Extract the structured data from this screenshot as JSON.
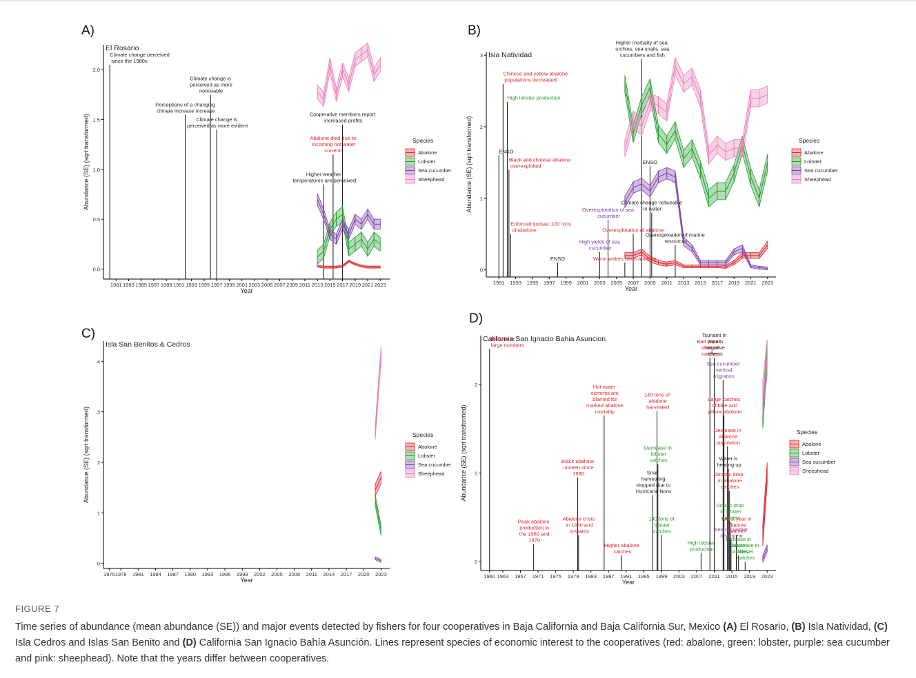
{
  "figure_label": "FIGURE 7",
  "caption": [
    "Time series of abundance (mean abundance (SE)) and major events detected by fishers for four cooperatives in Baja California and Baja California Sur, Mexico ",
    "(A)",
    " El Rosario, ",
    "(B)",
    " Isla Natividad, ",
    "(C)",
    " Isla Cedros and Islas San Benito and ",
    "(D)",
    " California San Ignacio Bahía Asunción. Lines represent species of economic interest to the cooperatives (red: abalone, green: lobster, purple: sea cucumber and pink: sheephead). Note that the years differ between cooperatives."
  ],
  "chart_data": [
    {
      "type": "line",
      "panel_label": "A)",
      "subtitle": "El Rosario",
      "x_label": "Year",
      "y_label": "Abundance (SE) (sqrt transformed)",
      "legend_title": "Species",
      "xlim": [
        1979,
        2024.5
      ],
      "xticks": [
        1981,
        1983,
        1985,
        1987,
        1989,
        1991,
        1993,
        1995,
        1997,
        1999,
        2001,
        2003,
        2005,
        2007,
        2009,
        2011,
        2013,
        2015,
        2017,
        2019,
        2021,
        2023
      ],
      "ylim": [
        -0.1,
        2.25
      ],
      "yticks": [
        {
          "value": 0,
          "label": "0.0"
        },
        {
          "value": 0.5,
          "label": "0.5"
        },
        {
          "value": 1,
          "label": "1.0"
        },
        {
          "value": 1.5,
          "label": "1.5"
        },
        {
          "value": 2,
          "label": "2.0"
        }
      ],
      "x": [
        2013,
        2014,
        2015,
        2016,
        2017,
        2018,
        2019,
        2020,
        2021,
        2022,
        2023
      ],
      "series": [
        {
          "name": "Abalone",
          "color": "#e0242a",
          "values": [
            0.03,
            0.02,
            0.02,
            0.02,
            0.03,
            0.08,
            0.05,
            0.03,
            0.02,
            0.02,
            0.02
          ],
          "errors": [
            0.01,
            0.01,
            0.01,
            0.01,
            0.01,
            0.01,
            0.01,
            0.01,
            0.01,
            0.01,
            0.01
          ]
        },
        {
          "name": "Lobster",
          "color": "#1f9a2a",
          "values": [
            0.12,
            0.18,
            0.4,
            0.5,
            0.55,
            0.2,
            0.25,
            0.3,
            0.2,
            0.3,
            0.25
          ],
          "errors": [
            0.07,
            0.07,
            0.07,
            0.07,
            0.08,
            0.07,
            0.07,
            0.07,
            0.07,
            0.07,
            0.07
          ]
        },
        {
          "name": "Sea cucumber",
          "color": "#7a3fa6",
          "values": [
            0.7,
            0.55,
            0.35,
            0.3,
            0.45,
            0.35,
            0.5,
            0.45,
            0.55,
            0.45,
            0.45
          ],
          "errors": [
            0.06,
            0.05,
            0.05,
            0.05,
            0.05,
            0.05,
            0.05,
            0.05,
            0.05,
            0.05,
            0.05
          ]
        },
        {
          "name": "Sheephead",
          "color": "#e87fb8",
          "values": [
            1.78,
            1.7,
            2.05,
            1.75,
            2.0,
            1.85,
            2.1,
            2.15,
            2.2,
            1.95,
            2.05
          ],
          "errors": [
            0.07,
            0.07,
            0.07,
            0.07,
            0.07,
            0.07,
            0.07,
            0.07,
            0.07,
            0.07,
            0.07
          ]
        }
      ],
      "annotations": [
        {
          "x": 1980,
          "y": 2.05,
          "text": "Climate change perceived since the 1980s",
          "color": "#222"
        },
        {
          "x": 1992,
          "y": 1.55,
          "text": "Perceptions of a changing climate increase increase",
          "color": "#222"
        },
        {
          "x": 1996,
          "y": 1.75,
          "text": "Climate change is perceived as more noticeable",
          "color": "#222"
        },
        {
          "x": 1997,
          "y": 1.4,
          "text": "Climate change is perceived as more evident",
          "color": "#222"
        },
        {
          "x": 2014,
          "y": 0.85,
          "text": "Higher weather temperatures are perceived",
          "color": "#222"
        },
        {
          "x": 2015.5,
          "y": 1.15,
          "text": "Abalone died due to incoming hot water currents",
          "color": "#e0242a"
        },
        {
          "x": 2017,
          "y": 1.45,
          "text": "Cooperative members report increased profits",
          "color": "#222"
        }
      ]
    },
    {
      "type": "line",
      "panel_label": "B)",
      "subtitle": "Isla Natividad",
      "x_label": "Year",
      "y_label": "Abundance (SE) (sqrt transformed)",
      "legend_title": "Species",
      "xlim": [
        1989.5,
        2024
      ],
      "xticks": [
        1991,
        1993,
        1995,
        1997,
        1999,
        2001,
        2003,
        2005,
        2007,
        2009,
        2011,
        2013,
        2015,
        2017,
        2019,
        2021,
        2023
      ],
      "ylim": [
        -0.1,
        3.05
      ],
      "yticks": [
        0,
        1,
        2,
        3
      ],
      "x": [
        2006,
        2007,
        2008,
        2009,
        2010,
        2011,
        2012,
        2013,
        2014,
        2015,
        2016,
        2017,
        2018,
        2019,
        2020,
        2021,
        2022,
        2023
      ],
      "series": [
        {
          "name": "Abalone",
          "color": "#e0242a",
          "values": [
            0.2,
            0.2,
            0.25,
            0.15,
            0.1,
            0.08,
            0.1,
            0.05,
            0.05,
            0.05,
            0.05,
            0.05,
            0.04,
            0.1,
            0.2,
            0.2,
            0.2,
            0.35
          ],
          "errors": [
            0.04,
            0.04,
            0.04,
            0.04,
            0.03,
            0.03,
            0.03,
            0.02,
            0.02,
            0.02,
            0.02,
            0.02,
            0.02,
            0.03,
            0.04,
            0.04,
            0.04,
            0.05
          ]
        },
        {
          "name": "Lobster",
          "color": "#1f9a2a",
          "values": [
            2.6,
            1.9,
            2.3,
            2.55,
            1.9,
            1.75,
            1.95,
            1.55,
            1.7,
            1.4,
            1.0,
            1.1,
            1.1,
            1.35,
            1.75,
            1.3,
            1.0,
            1.5
          ],
          "errors": [
            0.12,
            0.12,
            0.12,
            0.12,
            0.12,
            0.12,
            0.12,
            0.12,
            0.12,
            0.12,
            0.12,
            0.12,
            0.12,
            0.12,
            0.12,
            0.12,
            0.12,
            0.12
          ]
        },
        {
          "name": "Sea cucumber",
          "color": "#7a3fa6",
          "values": [
            0.95,
            1.15,
            1.2,
            1.1,
            1.3,
            1.35,
            1.3,
            0.4,
            0.3,
            0.1,
            0.1,
            0.1,
            0.1,
            0.25,
            0.3,
            0.05,
            0.03,
            0.02
          ],
          "errors": [
            0.08,
            0.08,
            0.08,
            0.08,
            0.08,
            0.08,
            0.08,
            0.06,
            0.05,
            0.03,
            0.03,
            0.03,
            0.03,
            0.04,
            0.05,
            0.02,
            0.02,
            0.02
          ]
        },
        {
          "name": "Sheephead",
          "color": "#e87fb8",
          "values": [
            1.7,
            2.1,
            2.0,
            2.35,
            2.3,
            2.2,
            2.85,
            2.6,
            2.7,
            2.4,
            1.6,
            1.75,
            1.65,
            1.7,
            1.7,
            2.4,
            2.4,
            2.45
          ],
          "errors": [
            0.12,
            0.12,
            0.12,
            0.12,
            0.12,
            0.12,
            0.12,
            0.12,
            0.12,
            0.12,
            0.12,
            0.12,
            0.12,
            0.12,
            0.12,
            0.12,
            0.12,
            0.12
          ]
        }
      ],
      "annotations": [
        {
          "x": 1991.5,
          "y": 2.6,
          "text": "Chinese and yellow abalone populations decreased",
          "color": "#e0242a"
        },
        {
          "x": 1992,
          "y": 2.35,
          "text": "High lobster production",
          "color": "#1f9a2a"
        },
        {
          "x": 1991,
          "y": 1.6,
          "text": "ENSO",
          "color": "#222"
        },
        {
          "x": 1992.2,
          "y": 1.4,
          "text": "Black and chinese abalone overexploited",
          "color": "#e0242a"
        },
        {
          "x": 1992.4,
          "y": 0.5,
          "text": "Enforced quotas: 100 tons of abalone",
          "color": "#e0242a"
        },
        {
          "x": 1998,
          "y": 0.1,
          "text": "ENSO",
          "color": "#222"
        },
        {
          "x": 2003,
          "y": 0.25,
          "text": "High yields of sea cucumber",
          "color": "#7a3fa6"
        },
        {
          "x": 2004,
          "y": 0.7,
          "text": "Overexplotation of sea cucumber",
          "color": "#7a3fa6"
        },
        {
          "x": 2006,
          "y": 0.1,
          "text": "Warm waters harm abalone",
          "color": "#e0242a"
        },
        {
          "x": 2007,
          "y": 0.5,
          "text": "Overexplotation of abalone",
          "color": "#e0242a"
        },
        {
          "x": 2008,
          "y": 2.95,
          "text": "Higher mortality of sea urchins, sea snails, sea cucumbers and fish",
          "color": "#222"
        },
        {
          "x": 2009,
          "y": 1.45,
          "text": "ENSO",
          "color": "#222"
        },
        {
          "x": 2009.2,
          "y": 0.8,
          "text": "Climate change noticeable in water",
          "color": "#222"
        },
        {
          "x": 2012,
          "y": 0.35,
          "text": "Overexplotation of marine resources",
          "color": "#222"
        }
      ]
    },
    {
      "type": "line",
      "panel_label": "C)",
      "subtitle": "Isla San Benitos & Cedros",
      "x_label": "Year",
      "y_label": "Abundance (SE) (sqrt transformed)",
      "legend_title": "Species",
      "xlim": [
        1975,
        2024.5
      ],
      "xticks": [
        1976,
        1978,
        1981,
        1984,
        1987,
        1990,
        1993,
        1996,
        1999,
        2002,
        2005,
        2008,
        2011,
        2014,
        2017,
        2020,
        2023
      ],
      "ylim": [
        -0.1,
        4.4
      ],
      "yticks": [
        0,
        1,
        2,
        3,
        4
      ],
      "x": [
        2022,
        2023
      ],
      "series": [
        {
          "name": "Abalone",
          "color": "#e0242a",
          "values": [
            1.45,
            1.7
          ],
          "errors": [
            0.12,
            0.12
          ]
        },
        {
          "name": "Lobster",
          "color": "#1f9a2a",
          "values": [
            1.25,
            0.65
          ],
          "errors": [
            0.1,
            0.1
          ]
        },
        {
          "name": "Sea cucumber",
          "color": "#7a3fa6",
          "values": [
            0.1,
            0.05
          ],
          "errors": [
            0.03,
            0.03
          ]
        },
        {
          "name": "Sheephead",
          "color": "#e87fb8",
          "values": [
            2.6,
            4.15
          ],
          "errors": [
            0.15,
            0.15
          ]
        }
      ],
      "annotations": []
    },
    {
      "type": "line",
      "panel_label": "D)",
      "subtitle": "California San Ignacio Bahia Asuncion",
      "x_label": "Year",
      "y_label": "Abundance (SE) (sqrt transformed)",
      "legend_title": "Species",
      "xlim": [
        1958,
        2025
      ],
      "xticks": [
        1960,
        1963,
        1967,
        1971,
        1975,
        1979,
        1983,
        1987,
        1991,
        1995,
        1999,
        2003,
        2007,
        2011,
        2015,
        2019,
        2023
      ],
      "ylim": [
        -0.1,
        2.55
      ],
      "yticks": [
        0,
        1,
        2
      ],
      "x": [
        2022,
        2023
      ],
      "series": [
        {
          "name": "Abalone",
          "color": "#e0242a",
          "values": [
            0.3,
            1.0
          ],
          "errors": [
            0.12,
            0.12
          ]
        },
        {
          "name": "Lobster",
          "color": "#1f9a2a",
          "values": [
            1.65,
            2.35
          ],
          "errors": [
            0.15,
            0.15
          ]
        },
        {
          "name": "Sea cucumber",
          "color": "#7a3fa6",
          "values": [
            0.03,
            0.15
          ],
          "errors": [
            0.04,
            0.04
          ]
        },
        {
          "name": "Sheephead",
          "color": "#e87fb8",
          "values": [
            1.85,
            2.3
          ],
          "errors": [
            0.2,
            0.2
          ]
        }
      ],
      "annotations": [
        {
          "x": 1960,
          "y": 2.4,
          "text": "Abalone in large numbers",
          "color": "#e0242a"
        },
        {
          "x": 1970,
          "y": 0.2,
          "text": "Peak abalone production in the 1960 and 1970",
          "color": "#e0242a"
        },
        {
          "x": 1980,
          "y": 0.95,
          "text": "Black abalone unseen since 1980",
          "color": "#e0242a"
        },
        {
          "x": 1980.2,
          "y": 0.3,
          "text": "Abalone crisis in 1980 and onwards",
          "color": "#e0242a"
        },
        {
          "x": 1986,
          "y": 1.65,
          "text": "Hot water currents are blamed for marked abalone mortality",
          "color": "#e0242a"
        },
        {
          "x": 1990,
          "y": 0.07,
          "text": "Higher abalone catches",
          "color": "#e0242a"
        },
        {
          "x": 1997,
          "y": 0.75,
          "text": "Snail harvesting stopped due to Hurricane Nora",
          "color": "#222"
        },
        {
          "x": 1998,
          "y": 1.7,
          "text": "140 tons of abalone harvested",
          "color": "#e0242a"
        },
        {
          "x": 1998.2,
          "y": 1.1,
          "text": "Decrease in lobster catches",
          "color": "#1f9a2a"
        },
        {
          "x": 1999,
          "y": 0.3,
          "text": "140 tons of lobster catches",
          "color": "#1f9a2a"
        },
        {
          "x": 2008,
          "y": 0.1,
          "text": "High lobster production",
          "color": "#1f9a2a"
        },
        {
          "x": 2010,
          "y": 2.3,
          "text": "Bad year in abalone catches",
          "color": "#e0242a"
        },
        {
          "x": 2011,
          "y": 2.3,
          "text": "Tsunami in Japan, negative effects",
          "color": "#222"
        },
        {
          "x": 2013,
          "y": 2.05,
          "text": "Sea cucumber vertical migration",
          "color": "#7a3fa6"
        },
        {
          "x": 2013.2,
          "y": 1.65,
          "text": "Large catches of blue and yellow abalone",
          "color": "#e0242a"
        },
        {
          "x": 2014,
          "y": 1.3,
          "text": "Decrease in abalone population",
          "color": "#e0242a"
        },
        {
          "x": 2014.2,
          "y": 1.05,
          "text": "Water is heating up",
          "color": "#222"
        },
        {
          "x": 2014.4,
          "y": 0.8,
          "text": "Drastic drop in abalone catches",
          "color": "#e0242a"
        },
        {
          "x": 2014.6,
          "y": 0.45,
          "text": "Drastic drop in lobster catches",
          "color": "#1f9a2a"
        },
        {
          "x": 2014.8,
          "y": 0.25,
          "text": "Sea cucumber disappear",
          "color": "#7a3fa6"
        },
        {
          "x": 2016,
          "y": 0.3,
          "text": "Worst year in abalone catches",
          "color": "#e0242a"
        },
        {
          "x": 2016.5,
          "y": 0.07,
          "text": "Increase in lobster catches",
          "color": "#1f9a2a"
        },
        {
          "x": 2018,
          "y": 0.0,
          "text": "Decrease in lobster catches",
          "color": "#1f9a2a"
        }
      ]
    }
  ]
}
